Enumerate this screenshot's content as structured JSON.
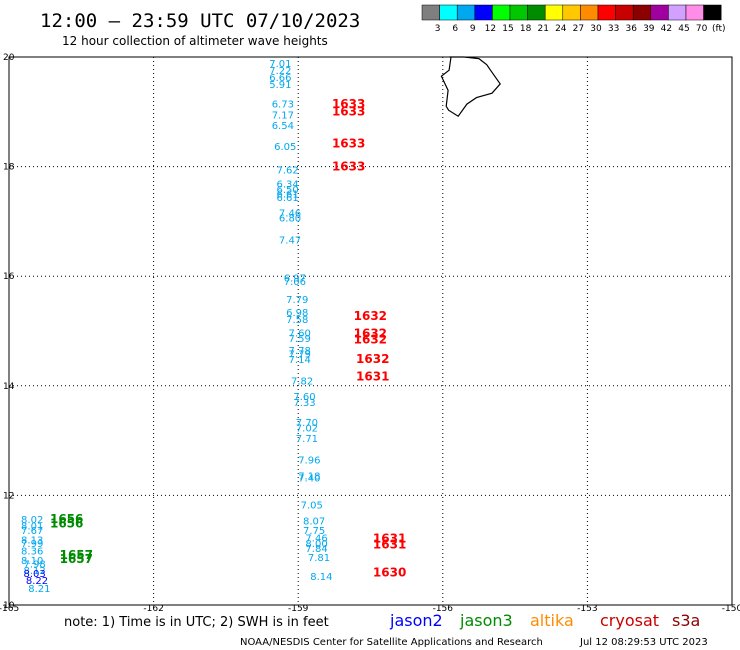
{
  "header": {
    "title": "12:00 – 23:59 UTC 07/10/2023",
    "subtitle": "12 hour collection of altimeter wave heights"
  },
  "legend": {
    "unit": "(ft)",
    "bins": [
      {
        "label": "3",
        "color": "#7f7f7f"
      },
      {
        "label": "6",
        "color": "#00ffff"
      },
      {
        "label": "9",
        "color": "#00a8f0"
      },
      {
        "label": "12",
        "color": "#0000ff"
      },
      {
        "label": "15",
        "color": "#00ff00"
      },
      {
        "label": "18",
        "color": "#00c800"
      },
      {
        "label": "21",
        "color": "#008c00"
      },
      {
        "label": "24",
        "color": "#ffff00"
      },
      {
        "label": "27",
        "color": "#ffc800"
      },
      {
        "label": "30",
        "color": "#ff8c00"
      },
      {
        "label": "33",
        "color": "#ff0000"
      },
      {
        "label": "36",
        "color": "#c80000"
      },
      {
        "label": "39",
        "color": "#8c0000"
      },
      {
        "label": "42",
        "color": "#a000a0"
      },
      {
        "label": "45",
        "color": "#d2a0ff"
      },
      {
        "label": "70",
        "color": "#ff8ce6"
      },
      {
        "label": "",
        "color": "#000000"
      }
    ]
  },
  "axes": {
    "lon_ticks": [
      "-165",
      "-162",
      "-159",
      "-156",
      "-153",
      "-150"
    ],
    "lon_values": [
      -165,
      -162,
      -159,
      -156,
      -153,
      -150
    ],
    "lat_ticks": [
      "10",
      "12",
      "14",
      "16",
      "18",
      "20"
    ],
    "lat_values": [
      10,
      12,
      14,
      16,
      18,
      20
    ],
    "lon_range": [
      -165,
      -150
    ],
    "lat_range": [
      10,
      20
    ]
  },
  "swh_points": [
    {
      "lon": -159.6,
      "lat": 19.82,
      "text": "7.01",
      "color": "#00a8f0"
    },
    {
      "lon": -159.6,
      "lat": 19.69,
      "text": "7.22",
      "color": "#00a8f0"
    },
    {
      "lon": -159.6,
      "lat": 19.56,
      "text": "6.66",
      "color": "#00a8f0"
    },
    {
      "lon": -159.6,
      "lat": 19.43,
      "text": "5.91",
      "color": "#00a8f0"
    },
    {
      "lon": -159.55,
      "lat": 19.08,
      "text": "6.73",
      "color": "#00a8f0"
    },
    {
      "lon": -159.55,
      "lat": 18.88,
      "text": "7.17",
      "color": "#00a8f0"
    },
    {
      "lon": -159.55,
      "lat": 18.69,
      "text": "6.54",
      "color": "#00a8f0"
    },
    {
      "lon": -159.5,
      "lat": 18.3,
      "text": "6.05",
      "color": "#00a8f0"
    },
    {
      "lon": -159.45,
      "lat": 17.87,
      "text": "7.62",
      "color": "#00a8f0"
    },
    {
      "lon": -159.45,
      "lat": 17.62,
      "text": "6.34",
      "color": "#00a8f0"
    },
    {
      "lon": -159.45,
      "lat": 17.52,
      "text": "6.50",
      "color": "#00a8f0"
    },
    {
      "lon": -159.45,
      "lat": 17.44,
      "text": "6.61",
      "color": "#00a8f0"
    },
    {
      "lon": -159.45,
      "lat": 17.37,
      "text": "6.61",
      "color": "#00a8f0"
    },
    {
      "lon": -159.4,
      "lat": 17.09,
      "text": "7.46",
      "color": "#00a8f0"
    },
    {
      "lon": -159.4,
      "lat": 17.0,
      "text": "6.80",
      "color": "#00a8f0"
    },
    {
      "lon": -159.4,
      "lat": 16.6,
      "text": "7.47",
      "color": "#00a8f0"
    },
    {
      "lon": -159.3,
      "lat": 15.9,
      "text": "6.97",
      "color": "#00a8f0"
    },
    {
      "lon": -159.3,
      "lat": 15.84,
      "text": "7.06",
      "color": "#00a8f0"
    },
    {
      "lon": -159.25,
      "lat": 15.51,
      "text": "7.79",
      "color": "#00a8f0"
    },
    {
      "lon": -159.25,
      "lat": 15.27,
      "text": "6.98",
      "color": "#00a8f0"
    },
    {
      "lon": -159.25,
      "lat": 15.15,
      "text": "7.58",
      "color": "#00a8f0"
    },
    {
      "lon": -159.2,
      "lat": 14.9,
      "text": "7.60",
      "color": "#00a8f0"
    },
    {
      "lon": -159.2,
      "lat": 14.8,
      "text": "7.59",
      "color": "#00a8f0"
    },
    {
      "lon": -159.2,
      "lat": 14.58,
      "text": "7.78",
      "color": "#00a8f0"
    },
    {
      "lon": -159.2,
      "lat": 14.52,
      "text": "7.79",
      "color": "#00a8f0"
    },
    {
      "lon": -159.2,
      "lat": 14.42,
      "text": "7.14",
      "color": "#00a8f0"
    },
    {
      "lon": -159.15,
      "lat": 14.02,
      "text": "7.82",
      "color": "#00a8f0"
    },
    {
      "lon": -159.1,
      "lat": 13.74,
      "text": "7.60",
      "color": "#00a8f0"
    },
    {
      "lon": -159.1,
      "lat": 13.63,
      "text": "7.33",
      "color": "#00a8f0"
    },
    {
      "lon": -159.05,
      "lat": 13.27,
      "text": "7.70",
      "color": "#00a8f0"
    },
    {
      "lon": -159.05,
      "lat": 13.17,
      "text": "7.02",
      "color": "#00a8f0"
    },
    {
      "lon": -159.05,
      "lat": 12.97,
      "text": "7.71",
      "color": "#00a8f0"
    },
    {
      "lon": -159.0,
      "lat": 12.58,
      "text": "7.96",
      "color": "#00a8f0"
    },
    {
      "lon": -159.0,
      "lat": 12.29,
      "text": "7.18",
      "color": "#00a8f0"
    },
    {
      "lon": -159.0,
      "lat": 12.25,
      "text": "7.40",
      "color": "#00a8f0"
    },
    {
      "lon": -158.95,
      "lat": 11.76,
      "text": "7.05",
      "color": "#00a8f0"
    },
    {
      "lon": -158.9,
      "lat": 11.47,
      "text": "8.07",
      "color": "#00a8f0"
    },
    {
      "lon": -158.9,
      "lat": 11.3,
      "text": "7.75",
      "color": "#00a8f0"
    },
    {
      "lon": -158.85,
      "lat": 11.16,
      "text": "7.46",
      "color": "#00a8f0"
    },
    {
      "lon": -158.85,
      "lat": 11.06,
      "text": "8.00",
      "color": "#00a8f0"
    },
    {
      "lon": -158.85,
      "lat": 10.97,
      "text": "7.84",
      "color": "#00a8f0"
    },
    {
      "lon": -158.8,
      "lat": 10.8,
      "text": "7.81",
      "color": "#00a8f0"
    },
    {
      "lon": -158.75,
      "lat": 10.46,
      "text": "8.14",
      "color": "#00a8f0"
    },
    {
      "lon": -164.75,
      "lat": 11.5,
      "text": "8.02",
      "color": "#00a8f0"
    },
    {
      "lon": -164.75,
      "lat": 11.38,
      "text": "8.01",
      "color": "#00a8f0"
    },
    {
      "lon": -164.75,
      "lat": 11.3,
      "text": "7.67",
      "color": "#00a8f0"
    },
    {
      "lon": -164.75,
      "lat": 11.12,
      "text": "8.13",
      "color": "#00a8f0"
    },
    {
      "lon": -164.75,
      "lat": 11.06,
      "text": "7.99",
      "color": "#00a8f0"
    },
    {
      "lon": -164.75,
      "lat": 10.92,
      "text": "8.36",
      "color": "#00a8f0"
    },
    {
      "lon": -164.75,
      "lat": 10.75,
      "text": "8.10",
      "color": "#00a8f0"
    },
    {
      "lon": -164.7,
      "lat": 10.68,
      "text": "7.98",
      "color": "#00a8f0"
    },
    {
      "lon": -164.7,
      "lat": 10.57,
      "text": "8.12",
      "color": "#00a8f0"
    },
    {
      "lon": -164.7,
      "lat": 10.51,
      "text": "8.03",
      "color": "#0000ff"
    },
    {
      "lon": -164.65,
      "lat": 10.38,
      "text": "8.22",
      "color": "#0000ff"
    },
    {
      "lon": -164.6,
      "lat": 10.24,
      "text": "8.21",
      "color": "#00a8f0"
    }
  ],
  "time_points": [
    {
      "lon": -158.3,
      "lat": 19.07,
      "text": "1633",
      "color": "#ff0000"
    },
    {
      "lon": -158.3,
      "lat": 18.93,
      "text": "1633",
      "color": "#ff0000"
    },
    {
      "lon": -158.3,
      "lat": 18.35,
      "text": "1633",
      "color": "#ff0000"
    },
    {
      "lon": -158.3,
      "lat": 17.93,
      "text": "1633",
      "color": "#ff0000"
    },
    {
      "lon": -157.85,
      "lat": 15.2,
      "text": "1632",
      "color": "#ff0000"
    },
    {
      "lon": -157.85,
      "lat": 14.88,
      "text": "1632",
      "color": "#ff0000"
    },
    {
      "lon": -157.85,
      "lat": 14.77,
      "text": "1632",
      "color": "#ff0000"
    },
    {
      "lon": -157.8,
      "lat": 14.42,
      "text": "1632",
      "color": "#ff0000"
    },
    {
      "lon": -157.8,
      "lat": 14.1,
      "text": "1631",
      "color": "#ff0000"
    },
    {
      "lon": -157.45,
      "lat": 11.14,
      "text": "1631",
      "color": "#ff0000"
    },
    {
      "lon": -157.45,
      "lat": 11.03,
      "text": "1631",
      "color": "#ff0000"
    },
    {
      "lon": -157.45,
      "lat": 10.52,
      "text": "1630",
      "color": "#ff0000"
    },
    {
      "lon": -164.15,
      "lat": 11.5,
      "text": "1656",
      "color": "#008c00"
    },
    {
      "lon": -164.15,
      "lat": 11.41,
      "text": "1656",
      "color": "#008c00"
    },
    {
      "lon": -163.95,
      "lat": 10.84,
      "text": "1657",
      "color": "#008c00"
    },
    {
      "lon": -163.95,
      "lat": 10.77,
      "text": "1657",
      "color": "#008c00"
    }
  ],
  "coastline": [
    [
      -155.86,
      20.27
    ],
    [
      -155.73,
      20.2
    ],
    [
      -155.56,
      20.13
    ],
    [
      -155.25,
      19.97
    ],
    [
      -155.09,
      19.86
    ],
    [
      -154.98,
      19.72
    ],
    [
      -154.81,
      19.51
    ],
    [
      -154.98,
      19.34
    ],
    [
      -155.3,
      19.26
    ],
    [
      -155.5,
      19.14
    ],
    [
      -155.68,
      18.92
    ],
    [
      -155.88,
      19.03
    ],
    [
      -155.93,
      19.1
    ],
    [
      -155.89,
      19.39
    ],
    [
      -156.03,
      19.65
    ],
    [
      -155.87,
      19.76
    ],
    [
      -155.83,
      20.0
    ],
    [
      -155.86,
      20.27
    ]
  ],
  "footer": {
    "note": "note: 1) Time is in UTC; 2) SWH is in feet",
    "sources": [
      {
        "name": "jason2",
        "color": "#0000ff"
      },
      {
        "name": "jason3",
        "color": "#008c00"
      },
      {
        "name": "altika",
        "color": "#ff8c00"
      },
      {
        "name": "cryosat",
        "color": "#c80000"
      },
      {
        "name": "s3a",
        "color": "#8c0000"
      }
    ],
    "credit": "NOAA/NESDIS Center for Satellite Applications and Research",
    "timestamp": "Jul 12 08:29:53 UTC 2023"
  }
}
